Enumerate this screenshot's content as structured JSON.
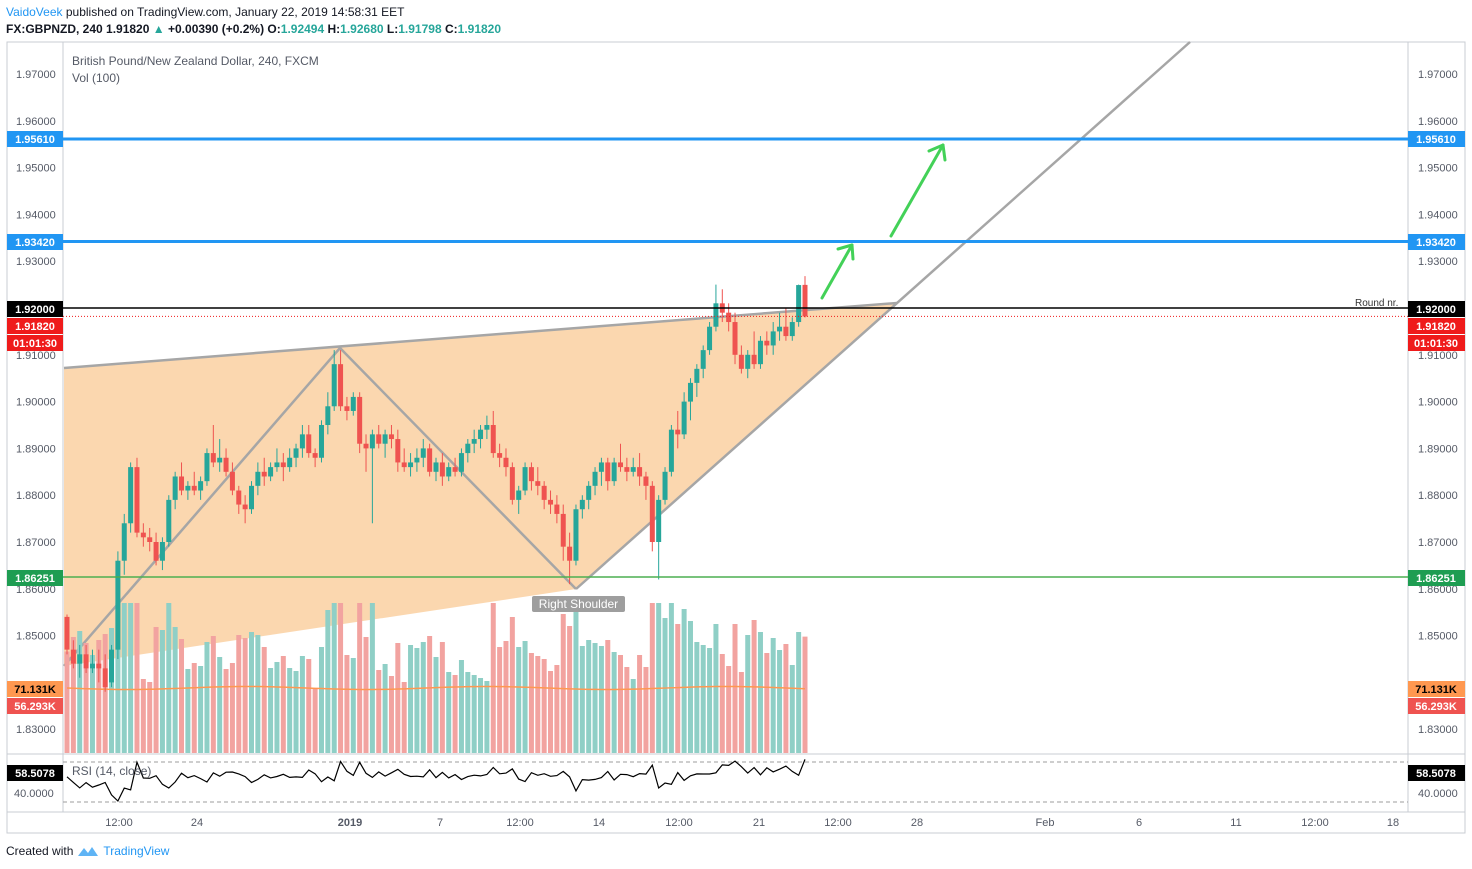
{
  "header": {
    "author": "VaidoVeek",
    "published_text": "published on TradingView.com, January 22, 2019 14:58:31 EET",
    "symbol": "FX:GBPNZD, 240",
    "last": "1.91820",
    "change_arrow": "▲",
    "change": "+0.00390 (+0.2%)",
    "o_label": "O:",
    "o_value": "1.92494",
    "h_label": "H:",
    "h_value": "1.92680",
    "l_label": "L:",
    "l_value": "1.91798",
    "c_label": "C:",
    "c_value": "1.91820"
  },
  "legend": {
    "title": "British Pound/New Zealand Dollar, 240, FXCM",
    "vol": "Vol (100)",
    "rsi": "RSI (14, close)"
  },
  "price_scale": {
    "ticks": [
      "1.97000",
      "1.96000",
      "1.95000",
      "1.94000",
      "1.93000",
      "1.92000",
      "1.91000",
      "1.90000",
      "1.89000",
      "1.88000",
      "1.87000",
      "1.86000",
      "1.85000",
      "1.83000"
    ],
    "tick_values": [
      1.97,
      1.96,
      1.95,
      1.94,
      1.93,
      1.92,
      1.91,
      1.9,
      1.89,
      1.88,
      1.87,
      1.86,
      1.85,
      1.83
    ]
  },
  "rsi_scale": {
    "tick": "40.0000"
  },
  "time_axis": [
    "12:00",
    "24",
    "2019",
    "7",
    "12:00",
    "14",
    "12:00",
    "21",
    "12:00",
    "28",
    "Feb",
    "6",
    "11",
    "12:00",
    "18"
  ],
  "badges": {
    "level_1_95610": "1.95610",
    "level_1_93420": "1.93420",
    "level_1_92000": "1.92000",
    "last_price": "1.91820",
    "countdown": "01:01:30",
    "level_1_86251": "1.86251",
    "vol_ma": "71.131K",
    "vol_last": "56.293K",
    "rsi_value": "58.5078"
  },
  "annotations": {
    "round_label": "Round nr.",
    "right_shoulder": "Right Shoulder"
  },
  "footer": {
    "created_with": "Created with",
    "brand": "TradingView"
  },
  "colors": {
    "up": "#26a69a",
    "down": "#ef5350",
    "blue_level": "#2196f3",
    "green_level": "#4caf50",
    "black_level": "#000000",
    "wedge_fill": "#fbd3a6",
    "trend_line": "#a6a6a6",
    "arrow": "#43d158",
    "vol_up": "#8fcfc6",
    "vol_down": "#f2a3a0",
    "vol_ma": "#ff9850"
  },
  "chart_data": {
    "type": "candlestick",
    "title": "British Pound/New Zealand Dollar, 240, FXCM",
    "price_range": [
      1.826,
      1.976
    ],
    "levels": [
      1.9561,
      1.9342,
      1.92,
      1.86251
    ],
    "candles": [
      [
        1.854,
        1.8545,
        1.846,
        1.847
      ],
      [
        1.847,
        1.849,
        1.843,
        1.844
      ],
      [
        1.844,
        1.848,
        1.841,
        1.846
      ],
      [
        1.846,
        1.848,
        1.842,
        1.843
      ],
      [
        1.843,
        1.847,
        1.842,
        1.844
      ],
      [
        1.844,
        1.847,
        1.84,
        1.843
      ],
      [
        1.843,
        1.846,
        1.838,
        1.839
      ],
      [
        1.84,
        1.848,
        1.839,
        1.847
      ],
      [
        1.847,
        1.868,
        1.845,
        1.866
      ],
      [
        1.866,
        1.876,
        1.863,
        1.874
      ],
      [
        1.874,
        1.887,
        1.872,
        1.886
      ],
      [
        1.886,
        1.888,
        1.871,
        1.872
      ],
      [
        1.872,
        1.874,
        1.869,
        1.871
      ],
      [
        1.871,
        1.873,
        1.868,
        1.87
      ],
      [
        1.87,
        1.872,
        1.865,
        1.866
      ],
      [
        1.866,
        1.871,
        1.864,
        1.87
      ],
      [
        1.87,
        1.88,
        1.869,
        1.879
      ],
      [
        1.879,
        1.885,
        1.877,
        1.884
      ],
      [
        1.884,
        1.887,
        1.88,
        1.881
      ],
      [
        1.881,
        1.883,
        1.879,
        1.882
      ],
      [
        1.882,
        1.885,
        1.88,
        1.881
      ],
      [
        1.881,
        1.884,
        1.879,
        1.883
      ],
      [
        1.883,
        1.89,
        1.882,
        1.889
      ],
      [
        1.889,
        1.895,
        1.886,
        1.887
      ],
      [
        1.887,
        1.892,
        1.885,
        1.888
      ],
      [
        1.888,
        1.89,
        1.884,
        1.885
      ],
      [
        1.885,
        1.887,
        1.88,
        1.881
      ],
      [
        1.881,
        1.882,
        1.876,
        1.878
      ],
      [
        1.878,
        1.88,
        1.874,
        1.877
      ],
      [
        1.877,
        1.883,
        1.876,
        1.882
      ],
      [
        1.882,
        1.887,
        1.88,
        1.885
      ],
      [
        1.885,
        1.888,
        1.882,
        1.884
      ],
      [
        1.884,
        1.887,
        1.883,
        1.886
      ],
      [
        1.886,
        1.89,
        1.885,
        1.887
      ],
      [
        1.887,
        1.889,
        1.883,
        1.886
      ],
      [
        1.886,
        1.89,
        1.885,
        1.888
      ],
      [
        1.888,
        1.891,
        1.886,
        1.89
      ],
      [
        1.89,
        1.895,
        1.888,
        1.893
      ],
      [
        1.893,
        1.895,
        1.888,
        1.889
      ],
      [
        1.889,
        1.89,
        1.886,
        1.888
      ],
      [
        1.888,
        1.896,
        1.887,
        1.895
      ],
      [
        1.895,
        1.902,
        1.893,
        1.899
      ],
      [
        1.899,
        1.911,
        1.898,
        1.908
      ],
      [
        1.908,
        1.911,
        1.898,
        1.899
      ],
      [
        1.899,
        1.901,
        1.896,
        1.898
      ],
      [
        1.898,
        1.902,
        1.897,
        1.901
      ],
      [
        1.901,
        1.902,
        1.889,
        1.891
      ],
      [
        1.891,
        1.893,
        1.885,
        1.89
      ],
      [
        1.89,
        1.894,
        1.874,
        1.893
      ],
      [
        1.893,
        1.895,
        1.89,
        1.891
      ],
      [
        1.891,
        1.894,
        1.888,
        1.893
      ],
      [
        1.893,
        1.895,
        1.89,
        1.892
      ],
      [
        1.892,
        1.894,
        1.885,
        1.887
      ],
      [
        1.887,
        1.89,
        1.885,
        1.886
      ],
      [
        1.886,
        1.889,
        1.884,
        1.887
      ],
      [
        1.887,
        1.89,
        1.885,
        1.888
      ],
      [
        1.888,
        1.892,
        1.886,
        1.89
      ],
      [
        1.89,
        1.891,
        1.884,
        1.885
      ],
      [
        1.885,
        1.888,
        1.883,
        1.887
      ],
      [
        1.887,
        1.889,
        1.882,
        1.884
      ],
      [
        1.884,
        1.887,
        1.883,
        1.886
      ],
      [
        1.886,
        1.888,
        1.884,
        1.885
      ],
      [
        1.885,
        1.89,
        1.884,
        1.889
      ],
      [
        1.889,
        1.892,
        1.887,
        1.891
      ],
      [
        1.891,
        1.894,
        1.889,
        1.892
      ],
      [
        1.892,
        1.895,
        1.89,
        1.894
      ],
      [
        1.894,
        1.897,
        1.892,
        1.895
      ],
      [
        1.895,
        1.898,
        1.888,
        1.889
      ],
      [
        1.889,
        1.891,
        1.886,
        1.888
      ],
      [
        1.888,
        1.89,
        1.884,
        1.886
      ],
      [
        1.886,
        1.887,
        1.878,
        1.879
      ],
      [
        1.879,
        1.882,
        1.876,
        1.881
      ],
      [
        1.881,
        1.887,
        1.88,
        1.886
      ],
      [
        1.886,
        1.887,
        1.881,
        1.883
      ],
      [
        1.883,
        1.886,
        1.88,
        1.882
      ],
      [
        1.882,
        1.883,
        1.877,
        1.879
      ],
      [
        1.879,
        1.881,
        1.876,
        1.878
      ],
      [
        1.878,
        1.88,
        1.874,
        1.876
      ],
      [
        1.876,
        1.878,
        1.866,
        1.869
      ],
      [
        1.869,
        1.872,
        1.861,
        1.866
      ],
      [
        1.866,
        1.878,
        1.865,
        1.877
      ],
      [
        1.877,
        1.88,
        1.875,
        1.879
      ],
      [
        1.879,
        1.883,
        1.877,
        1.882
      ],
      [
        1.882,
        1.886,
        1.88,
        1.885
      ],
      [
        1.885,
        1.888,
        1.882,
        1.887
      ],
      [
        1.887,
        1.888,
        1.881,
        1.883
      ],
      [
        1.883,
        1.888,
        1.882,
        1.887
      ],
      [
        1.887,
        1.891,
        1.885,
        1.886
      ],
      [
        1.886,
        1.888,
        1.883,
        1.885
      ],
      [
        1.885,
        1.888,
        1.884,
        1.886
      ],
      [
        1.886,
        1.889,
        1.882,
        1.884
      ],
      [
        1.884,
        1.885,
        1.879,
        1.882
      ],
      [
        1.882,
        1.883,
        1.868,
        1.87
      ],
      [
        1.87,
        1.88,
        1.862,
        1.879
      ],
      [
        1.879,
        1.886,
        1.878,
        1.885
      ],
      [
        1.885,
        1.895,
        1.884,
        1.894
      ],
      [
        1.894,
        1.898,
        1.89,
        1.893
      ],
      [
        1.893,
        1.902,
        1.892,
        1.9
      ],
      [
        1.9,
        1.905,
        1.896,
        1.904
      ],
      [
        1.904,
        1.908,
        1.901,
        1.907
      ],
      [
        1.907,
        1.912,
        1.905,
        1.911
      ],
      [
        1.911,
        1.917,
        1.91,
        1.916
      ],
      [
        1.916,
        1.925,
        1.915,
        1.921
      ],
      [
        1.921,
        1.924,
        1.917,
        1.919
      ],
      [
        1.919,
        1.921,
        1.915,
        1.917
      ],
      [
        1.917,
        1.919,
        1.908,
        1.91
      ],
      [
        1.91,
        1.912,
        1.906,
        1.907
      ],
      [
        1.907,
        1.911,
        1.905,
        1.91
      ],
      [
        1.91,
        1.915,
        1.907,
        1.908
      ],
      [
        1.908,
        1.914,
        1.907,
        1.913
      ],
      [
        1.913,
        1.915,
        1.91,
        1.912
      ],
      [
        1.912,
        1.917,
        1.91,
        1.915
      ],
      [
        1.915,
        1.919,
        1.913,
        1.916
      ],
      [
        1.916,
        1.92,
        1.913,
        1.914
      ],
      [
        1.914,
        1.918,
        1.913,
        1.917
      ],
      [
        1.917,
        1.925,
        1.916,
        1.9249
      ],
      [
        1.92494,
        1.9268,
        1.91798,
        1.9182
      ]
    ]
  }
}
